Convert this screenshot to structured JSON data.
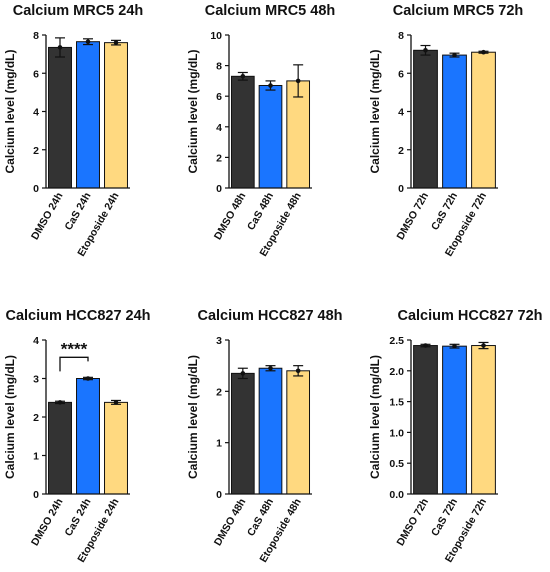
{
  "chart_data": [
    {
      "type": "bar",
      "title": "Calcium MRC5 24h",
      "ylabel": "Calcium level (mg/dL)",
      "categories": [
        "DMSO 24h",
        "CaS 24h",
        "Etoposide 24h"
      ],
      "values": [
        7.35,
        7.65,
        7.6
      ],
      "errors": [
        0.5,
        0.15,
        0.12
      ],
      "points": [
        7.35,
        7.65,
        7.6
      ],
      "ylim": [
        0,
        8
      ],
      "yticks": [
        "0",
        "2",
        "4",
        "6",
        "8"
      ],
      "bar_colors": [
        "#333333",
        "#1a75ff",
        "#ffd980"
      ]
    },
    {
      "type": "bar",
      "title": "Calcium MRC5 48h",
      "ylabel": "Calcium level (mg/dL)",
      "categories": [
        "DMSO 48h",
        "CaS 48h",
        "Etoposide 48h"
      ],
      "values": [
        7.3,
        6.7,
        7.0
      ],
      "errors": [
        0.25,
        0.3,
        1.05
      ],
      "points": [
        7.3,
        6.7,
        7.0
      ],
      "ylim": [
        0,
        10
      ],
      "yticks": [
        "0",
        "2",
        "4",
        "6",
        "8",
        "10"
      ],
      "bar_colors": [
        "#333333",
        "#1a75ff",
        "#ffd980"
      ]
    },
    {
      "type": "bar",
      "title": "Calcium MRC5 72h",
      "ylabel": "Calcium level (mg/dL)",
      "categories": [
        "DMSO 72h",
        "CaS 72h",
        "Etoposide 72h"
      ],
      "values": [
        7.2,
        6.95,
        7.1
      ],
      "errors": [
        0.25,
        0.1,
        0.05
      ],
      "points": [
        7.2,
        6.95,
        7.1
      ],
      "ylim": [
        0,
        8
      ],
      "yticks": [
        "0",
        "2",
        "4",
        "6",
        "8"
      ],
      "bar_colors": [
        "#333333",
        "#1a75ff",
        "#ffd980"
      ]
    },
    {
      "type": "bar",
      "title": "Calcium HCC827 24h",
      "ylabel": "Calcium level (mg/dL)",
      "categories": [
        "DMSO 24h",
        "CaS 24h",
        "Etoposide 24h"
      ],
      "values": [
        2.38,
        3.0,
        2.38
      ],
      "errors": [
        0.03,
        0.03,
        0.05
      ],
      "points": [
        2.38,
        3.0,
        2.38
      ],
      "ylim": [
        0,
        4
      ],
      "yticks": [
        "0",
        "1",
        "2",
        "3",
        "4"
      ],
      "bar_colors": [
        "#333333",
        "#1a75ff",
        "#ffd980"
      ],
      "significance": {
        "label": "****",
        "from": 0,
        "to": 1,
        "level": 3.55
      }
    },
    {
      "type": "bar",
      "title": "Calcium HCC827 48h",
      "ylabel": "Calcium level (mg/dL)",
      "categories": [
        "DMSO 48h",
        "CaS 48h",
        "Etoposide 48h"
      ],
      "values": [
        2.35,
        2.45,
        2.4
      ],
      "errors": [
        0.1,
        0.05,
        0.1
      ],
      "points": [
        2.35,
        2.45,
        2.4
      ],
      "ylim": [
        0,
        3
      ],
      "yticks": [
        "0",
        "1",
        "2",
        "3"
      ],
      "bar_colors": [
        "#333333",
        "#1a75ff",
        "#ffd980"
      ]
    },
    {
      "type": "bar",
      "title": "Calcium HCC827 72h",
      "ylabel": "Calcium level (mg/dL)",
      "categories": [
        "DMSO 72h",
        "CaS 72h",
        "Etoposide 72h"
      ],
      "values": [
        2.41,
        2.4,
        2.41
      ],
      "errors": [
        0.02,
        0.03,
        0.05
      ],
      "points": [
        2.41,
        2.4,
        2.41
      ],
      "ylim": [
        0,
        2.5
      ],
      "yticks": [
        "0.0",
        "0.5",
        "1.0",
        "1.5",
        "2.0",
        "2.5"
      ],
      "bar_colors": [
        "#333333",
        "#1a75ff",
        "#ffd980"
      ]
    }
  ]
}
